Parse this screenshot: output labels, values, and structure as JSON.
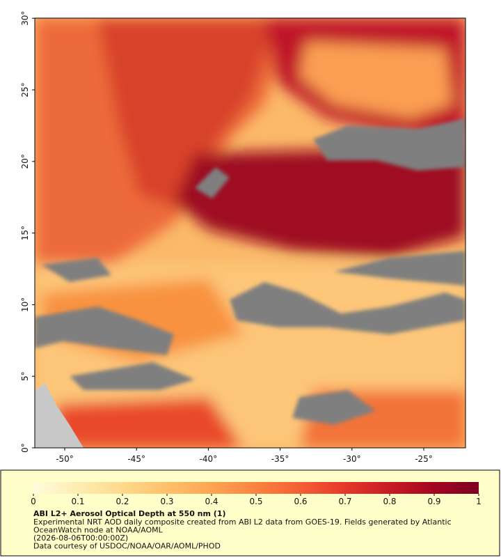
{
  "map": {
    "lat_labels": [
      "0°",
      "5°",
      "10°",
      "15°",
      "20°",
      "25°",
      "30°"
    ],
    "lon_labels": [
      "-50°",
      "-45°",
      "-40°",
      "-35°",
      "-30°",
      "-25°"
    ]
  },
  "colorbar": {
    "clim": [
      0,
      1
    ],
    "ticks": [
      0,
      0.1,
      0.2,
      0.3,
      0.4,
      0.5,
      0.6,
      0.7,
      0.8,
      0.9,
      1
    ],
    "colors": [
      "#fffbdc",
      "#feedb2",
      "#fed98c",
      "#fec06b",
      "#fda453",
      "#fb8340",
      "#f45f33",
      "#e5382a",
      "#c81b24",
      "#a2061f",
      "#7d0022"
    ]
  },
  "caption": {
    "title": "ABI L2+ Aerosol Optical Depth at 550 nm (1)",
    "lines": [
      "Experimental NRT AOD daily composite created from ABI L2 data from GOES-19. Fields generated by Atlantic",
      "OceanWatch node at NOAA/AOML",
      "(2026-08-06T00:00:00Z)",
      "Data courtesy of USDOC/NOAA/OAR/AOML/PHOD"
    ]
  }
}
